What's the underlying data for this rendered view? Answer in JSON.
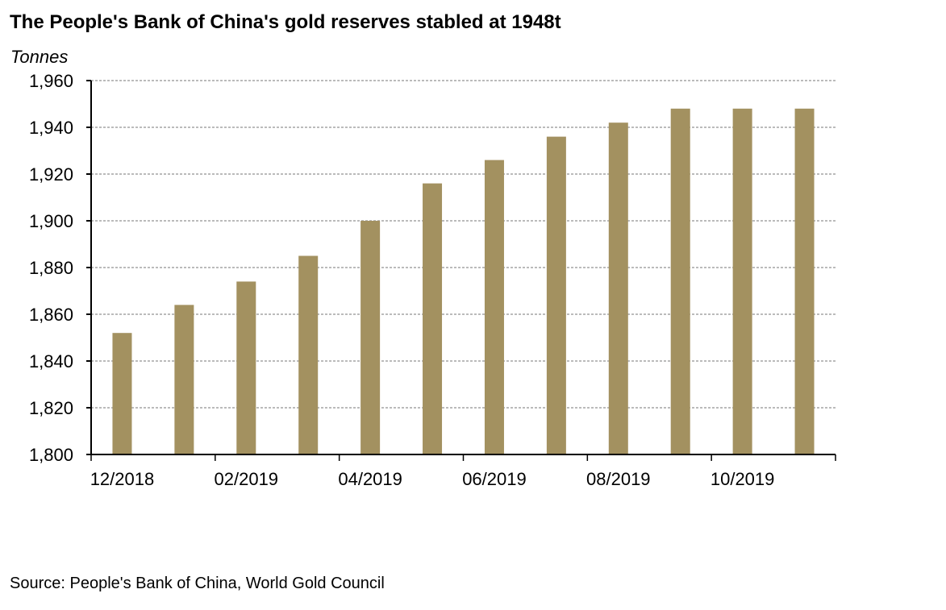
{
  "chart_data": {
    "type": "bar",
    "title": "The People's Bank of China's gold reserves stabled at 1948t",
    "ylabel": "Tonnes",
    "xlabel": "",
    "ylim": [
      1800,
      1960
    ],
    "yticks": [
      "1,800",
      "1,820",
      "1,840",
      "1,860",
      "1,880",
      "1,900",
      "1,920",
      "1,940",
      "1,960"
    ],
    "ytick_values": [
      1800,
      1820,
      1840,
      1860,
      1880,
      1900,
      1920,
      1940,
      1960
    ],
    "categories": [
      "12/2018",
      "01/2019",
      "02/2019",
      "03/2019",
      "04/2019",
      "05/2019",
      "06/2019",
      "07/2019",
      "08/2019",
      "09/2019",
      "10/2019",
      "11/2019"
    ],
    "xtick_labels": [
      "12/2018",
      "02/2019",
      "04/2019",
      "06/2019",
      "08/2019",
      "10/2019"
    ],
    "values": [
      1852,
      1864,
      1874,
      1885,
      1900,
      1916,
      1926,
      1936,
      1942,
      1948,
      1948,
      1948
    ],
    "bar_color": "#a39160",
    "grid": true,
    "source": "Source: People's Bank of China, World Gold Council"
  }
}
